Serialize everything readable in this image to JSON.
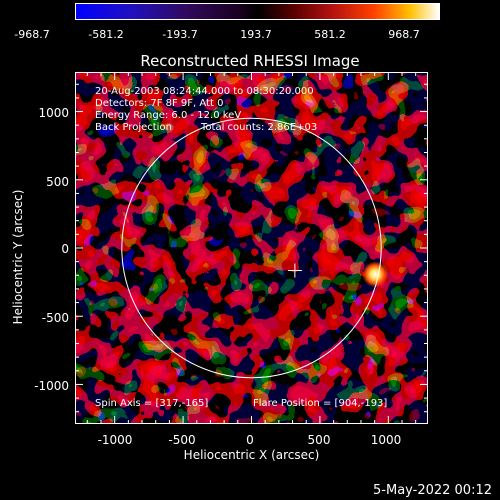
{
  "colorbar": {
    "ticks": [
      "-968.7",
      "-581.2",
      "-193.7",
      "193.7",
      "581.2",
      "968.7"
    ]
  },
  "title": "Reconstructed RHESSI Image",
  "info_lines": {
    "time": "20-Aug-2003 08:24:44.000 to 08:30:20.000",
    "detectors": "Detectors: 7F 8F 9F, Att 0",
    "energy": "Energy Range: 6.0 - 12.0 keV",
    "method": "Back Projection",
    "counts": "Total counts: 2.86E+03",
    "spin_axis": "Spin Axis = [317,-165]",
    "flare_position": "Flare Position = [904,-193]"
  },
  "axes": {
    "xlabel": "Heliocentric X (arcsec)",
    "ylabel": "Heliocentric Y (arcsec)",
    "xticks": [
      "-1000",
      "-500",
      "0",
      "500",
      "1000"
    ],
    "yticks": [
      "1000",
      "500",
      "0",
      "-500",
      "-1000"
    ]
  },
  "datestamp": "5-May-2022 00:12",
  "chart_data": {
    "type": "heatmap",
    "title": "Reconstructed RHESSI Image",
    "xlabel": "Heliocentric X (arcsec)",
    "ylabel": "Heliocentric Y (arcsec)",
    "xlim": [
      -1290,
      1290
    ],
    "ylim": [
      -1290,
      1290
    ],
    "colorbar_range": [
      -968.7,
      968.7
    ],
    "solar_limb_radius": 948,
    "spin_axis": [
      317,
      -165
    ],
    "flare_position": [
      904,
      -193
    ],
    "colors": {
      "limb": "#ffffff",
      "low": "#0000ff",
      "high": "#ffffff"
    }
  }
}
